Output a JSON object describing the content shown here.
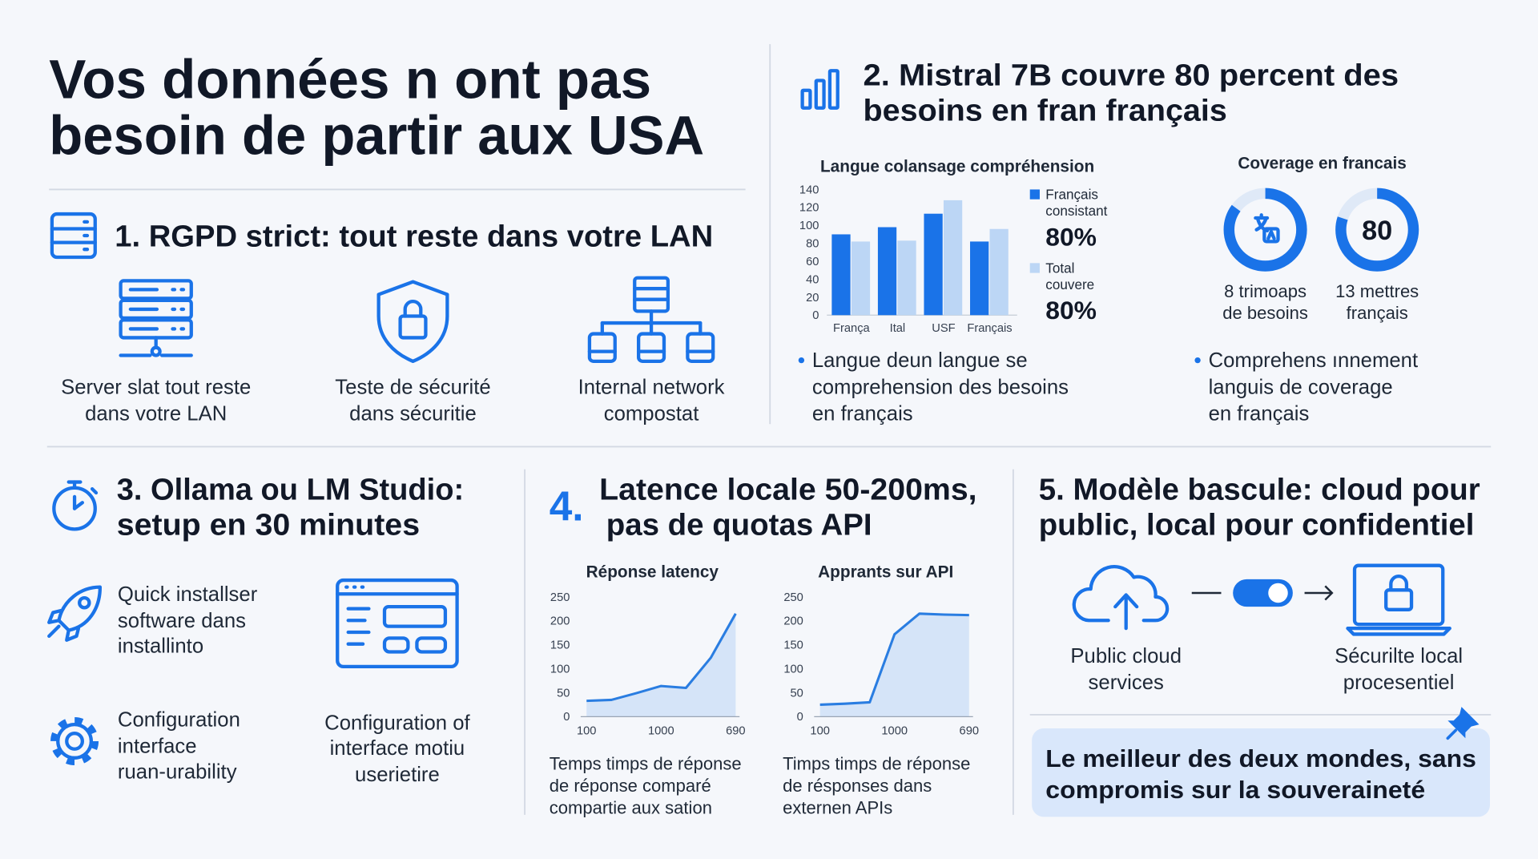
{
  "title": [
    "Vos données n ont pas",
    "besoin de partir aux USA"
  ],
  "s1": {
    "heading": "1. RGPD strict: tout reste dans votre LAN",
    "items": [
      [
        "Server slat tout reste",
        "dans votre LAN"
      ],
      [
        "Teste de sécurité",
        "dans sécuritie"
      ],
      [
        "Internal network",
        "compostat"
      ]
    ]
  },
  "s2": {
    "heading": [
      "2. Mistral 7B couvre 80 percent des",
      "besoins en fran français"
    ],
    "bar_chart": {
      "type": "bar",
      "title": "Langue colansage compréhension",
      "categories": [
        "França",
        "Ital",
        "USF",
        "Français"
      ],
      "ylim": [
        0,
        140
      ],
      "yticks": [
        0,
        20,
        40,
        60,
        80,
        100,
        120,
        140
      ],
      "series": [
        {
          "name": [
            "Français",
            "consistant"
          ],
          "color": "#1a73e8",
          "values": [
            90,
            98,
            113,
            82
          ],
          "legend_value": "80%"
        },
        {
          "name": [
            "Total",
            "couvere"
          ],
          "color": "#bcd6f5",
          "values": [
            82,
            83,
            128,
            96
          ],
          "legend_value": "80%"
        }
      ]
    },
    "bullet": [
      "Langue deun langue se",
      "comprehension des besoins",
      "en français"
    ],
    "coverage": {
      "title": "Coverage en francais",
      "range": [
        0,
        100
      ],
      "donuts": [
        {
          "value": 85,
          "caption": [
            "8 trimoaps",
            "de besoins"
          ]
        },
        {
          "value": 80,
          "caption": [
            "13 mettres",
            "français"
          ]
        }
      ]
    },
    "bullet2": [
      "Comprehens ınnement",
      "languis de coverage",
      "en français"
    ]
  },
  "s3": {
    "heading": [
      "3. Ollama ou LM Studio:",
      "setup en 30 minutes"
    ],
    "items": [
      [
        "Quick installser",
        "software dans",
        "installinto"
      ],
      [
        "Configuration",
        "interface",
        "ruan-urability"
      ],
      [
        "Configuration of",
        "interface motiu",
        "userietire"
      ]
    ]
  },
  "s4": {
    "number": "4.",
    "heading": [
      "Latence locale 50-200ms,",
      "pas de quotas API"
    ],
    "charts": [
      {
        "type": "line",
        "title": "Réponse latency",
        "color": "#2a7de1",
        "values": [
          33,
          35,
          49,
          64,
          60,
          123,
          215
        ],
        "ylim": [
          0,
          250
        ],
        "yticks": [
          0,
          50,
          100,
          150,
          200,
          250
        ],
        "xtick_labels": [
          "100",
          "1000",
          "690"
        ],
        "caption": [
          "Temps timps de réponse",
          "de réponse comparé",
          "compartie aux sation"
        ]
      },
      {
        "type": "line",
        "title": "Apprants sur API",
        "color": "#2a7de1",
        "values": [
          25,
          27,
          30,
          172,
          215,
          213,
          212
        ],
        "ylim": [
          0,
          250
        ],
        "yticks": [
          0,
          50,
          100,
          150,
          200,
          250
        ],
        "xtick_labels": [
          "100",
          "1000",
          "690"
        ],
        "caption": [
          "Timps timps de réponse",
          "de résponses dans",
          "externen APIs"
        ]
      }
    ]
  },
  "s5": {
    "heading": [
      "5. Modèle bascule: cloud pour",
      "public, local pour confidentiel"
    ],
    "cloud": [
      "Public cloud",
      "services"
    ],
    "local": [
      "Sécurilte local",
      "procesentiel"
    ],
    "callout": [
      "Le meilleur des deux mondes, sans",
      "compromis sur la souveraineté"
    ]
  }
}
